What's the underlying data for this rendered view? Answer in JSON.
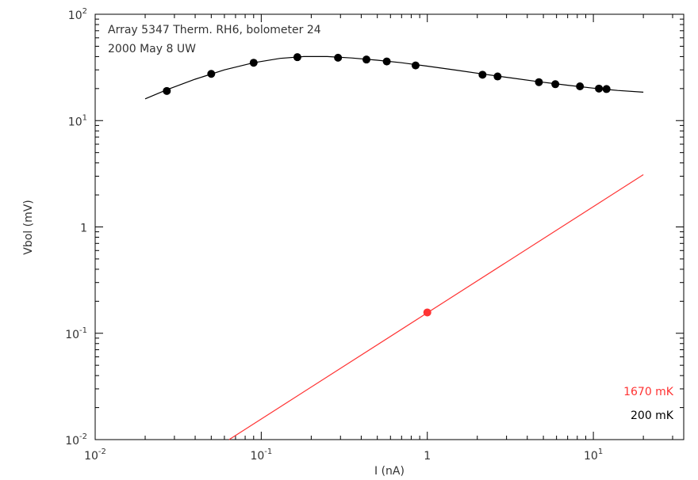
{
  "chart_data": {
    "type": "scatter",
    "x_scale": "log",
    "y_scale": "log",
    "xlim": [
      0.01,
      35
    ],
    "ylim": [
      0.01,
      100
    ],
    "xlabel": "I (nA)",
    "ylabel": "Vbol (mV)",
    "annotations": [
      "Array 5347 Therm. RH6, bolometer 24",
      "2000 May 8 UW"
    ],
    "x_ticks": [
      {
        "value": 0.01,
        "base": "10",
        "exp": "-2"
      },
      {
        "value": 0.1,
        "base": "10",
        "exp": "-1"
      },
      {
        "value": 1,
        "base": "1",
        "exp": ""
      },
      {
        "value": 10,
        "base": "10",
        "exp": "1"
      }
    ],
    "y_ticks": [
      {
        "value": 0.01,
        "base": "10",
        "exp": "-2"
      },
      {
        "value": 0.1,
        "base": "10",
        "exp": "-1"
      },
      {
        "value": 1,
        "base": "1",
        "exp": ""
      },
      {
        "value": 10,
        "base": "10",
        "exp": "1"
      },
      {
        "value": 100,
        "base": "10",
        "exp": "2"
      }
    ],
    "series": [
      {
        "name": "200 mK",
        "color": "#000000",
        "points": [
          {
            "x": 0.027,
            "y": 19.0
          },
          {
            "x": 0.05,
            "y": 27.5
          },
          {
            "x": 0.09,
            "y": 35.0
          },
          {
            "x": 0.165,
            "y": 39.5
          },
          {
            "x": 0.29,
            "y": 39.0
          },
          {
            "x": 0.43,
            "y": 37.5
          },
          {
            "x": 0.57,
            "y": 36.0
          },
          {
            "x": 0.85,
            "y": 33.0
          },
          {
            "x": 2.15,
            "y": 27.0
          },
          {
            "x": 2.65,
            "y": 26.0
          },
          {
            "x": 4.7,
            "y": 23.0
          },
          {
            "x": 5.9,
            "y": 22.0
          },
          {
            "x": 8.3,
            "y": 21.0
          },
          {
            "x": 10.8,
            "y": 20.0
          },
          {
            "x": 12.0,
            "y": 19.8
          }
        ],
        "fit": [
          {
            "x": 0.02,
            "y": 16.0
          },
          {
            "x": 0.027,
            "y": 19.5
          },
          {
            "x": 0.04,
            "y": 24.5
          },
          {
            "x": 0.06,
            "y": 30.0
          },
          {
            "x": 0.09,
            "y": 35.0
          },
          {
            "x": 0.13,
            "y": 38.5
          },
          {
            "x": 0.18,
            "y": 40.0
          },
          {
            "x": 0.25,
            "y": 40.0
          },
          {
            "x": 0.35,
            "y": 38.8
          },
          {
            "x": 0.5,
            "y": 37.0
          },
          {
            "x": 0.7,
            "y": 35.0
          },
          {
            "x": 1.0,
            "y": 32.5
          },
          {
            "x": 1.5,
            "y": 29.8
          },
          {
            "x": 2.2,
            "y": 27.3
          },
          {
            "x": 3.2,
            "y": 25.2
          },
          {
            "x": 4.7,
            "y": 23.2
          },
          {
            "x": 7.0,
            "y": 21.5
          },
          {
            "x": 10.0,
            "y": 20.2
          },
          {
            "x": 14.0,
            "y": 19.2
          },
          {
            "x": 20.0,
            "y": 18.5
          }
        ]
      },
      {
        "name": "1670 mK",
        "color": "#ff3333",
        "points": [
          {
            "x": 1.0,
            "y": 0.157
          }
        ],
        "fit": [
          {
            "x": 0.064,
            "y": 0.01
          },
          {
            "x": 20.0,
            "y": 3.1
          }
        ]
      }
    ]
  }
}
